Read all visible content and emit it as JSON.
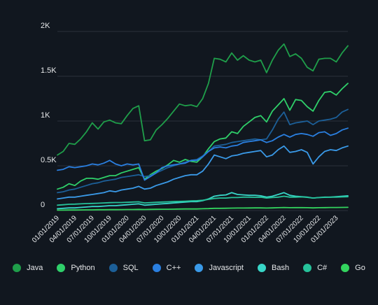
{
  "chart_data": {
    "type": "line",
    "title": "",
    "xlabel": "",
    "ylabel": "",
    "ylim": [
      0,
      2000
    ],
    "y_ticks": [
      0,
      500,
      1000,
      1500,
      2000
    ],
    "y_tick_labels": [
      "0",
      "0.5K",
      "1K",
      "1.5K",
      "2K"
    ],
    "x_tick_labels": [
      "01/01/2019",
      "04/01/2019",
      "07/01/2019",
      "10/01/2019",
      "01/01/2020",
      "04/01/2020",
      "07/01/2020",
      "10/01/2020",
      "01/01/2021",
      "04/01/2021",
      "07/01/2021",
      "10/01/2021",
      "01/01/2022",
      "04/01/2022",
      "07/01/2022",
      "10/01/2022",
      "01/01/2023"
    ],
    "x": [
      "01/2019",
      "02/2019",
      "03/2019",
      "04/2019",
      "05/2019",
      "06/2019",
      "07/2019",
      "08/2019",
      "09/2019",
      "10/2019",
      "11/2019",
      "12/2019",
      "01/2020",
      "02/2020",
      "03/2020",
      "04/2020",
      "05/2020",
      "06/2020",
      "07/2020",
      "08/2020",
      "09/2020",
      "10/2020",
      "11/2020",
      "12/2020",
      "01/2021",
      "02/2021",
      "03/2021",
      "04/2021",
      "05/2021",
      "06/2021",
      "07/2021",
      "08/2021",
      "09/2021",
      "10/2021",
      "11/2021",
      "12/2021",
      "01/2022",
      "02/2022",
      "03/2022",
      "04/2022",
      "05/2022",
      "06/2022",
      "07/2022",
      "08/2022",
      "09/2022",
      "10/2022",
      "11/2022",
      "12/2022",
      "01/2023",
      "02/2023",
      "03/2023"
    ],
    "grid": "horizontal",
    "legend_position": "bottom",
    "series": [
      {
        "name": "Java",
        "color": "#1f9e4a",
        "values": [
          620,
          660,
          750,
          740,
          800,
          880,
          980,
          910,
          990,
          1010,
          980,
          970,
          1060,
          1140,
          1170,
          780,
          790,
          900,
          960,
          1030,
          1110,
          1190,
          1170,
          1180,
          1160,
          1250,
          1420,
          1700,
          1690,
          1660,
          1760,
          1680,
          1730,
          1680,
          1660,
          1680,
          1540,
          1680,
          1790,
          1860,
          1720,
          1750,
          1700,
          1600,
          1560,
          1690,
          1700,
          1700,
          1660,
          1760,
          1840
        ]
      },
      {
        "name": "Python",
        "color": "#2fd06a",
        "values": [
          240,
          260,
          300,
          280,
          330,
          360,
          360,
          350,
          370,
          390,
          390,
          420,
          440,
          460,
          480,
          350,
          400,
          440,
          470,
          510,
          560,
          540,
          570,
          550,
          540,
          600,
          690,
          770,
          800,
          810,
          880,
          860,
          940,
          990,
          1040,
          1060,
          990,
          1110,
          1180,
          1250,
          1120,
          1240,
          1230,
          1160,
          1110,
          1230,
          1320,
          1330,
          1290,
          1360,
          1420
        ]
      },
      {
        "name": "SQL",
        "color": "#1c5f98",
        "values": [
          200,
          210,
          230,
          240,
          260,
          280,
          300,
          310,
          330,
          340,
          350,
          370,
          380,
          390,
          400,
          380,
          390,
          420,
          450,
          480,
          500,
          520,
          540,
          560,
          570,
          610,
          660,
          720,
          730,
          740,
          760,
          770,
          780,
          790,
          800,
          790,
          800,
          900,
          1020,
          1100,
          960,
          980,
          990,
          1000,
          960,
          1000,
          1010,
          1020,
          1040,
          1100,
          1130
        ]
      },
      {
        "name": "C++",
        "color": "#2a7fe0",
        "values": [
          450,
          460,
          490,
          480,
          490,
          500,
          520,
          510,
          530,
          560,
          520,
          500,
          520,
          510,
          520,
          340,
          380,
          420,
          480,
          500,
          510,
          520,
          530,
          560,
          560,
          600,
          660,
          700,
          710,
          700,
          720,
          730,
          760,
          770,
          780,
          790,
          760,
          780,
          820,
          850,
          820,
          850,
          860,
          850,
          830,
          870,
          880,
          840,
          860,
          900,
          920
        ]
      },
      {
        "name": "Javascript",
        "color": "#3a9ae8",
        "values": [
          130,
          140,
          150,
          150,
          160,
          170,
          180,
          190,
          200,
          220,
          210,
          230,
          240,
          250,
          270,
          240,
          250,
          280,
          300,
          320,
          350,
          370,
          390,
          400,
          400,
          440,
          520,
          620,
          600,
          580,
          610,
          620,
          640,
          650,
          660,
          670,
          600,
          620,
          680,
          720,
          650,
          660,
          680,
          650,
          520,
          600,
          660,
          680,
          670,
          700,
          720
        ]
      },
      {
        "name": "Bash",
        "color": "#38d6c8",
        "values": [
          20,
          25,
          30,
          30,
          35,
          40,
          45,
          45,
          50,
          55,
          55,
          60,
          65,
          70,
          75,
          60,
          65,
          70,
          75,
          80,
          85,
          90,
          95,
          100,
          100,
          110,
          130,
          160,
          170,
          175,
          200,
          180,
          175,
          170,
          170,
          165,
          150,
          160,
          180,
          200,
          170,
          160,
          155,
          150,
          140,
          145,
          150,
          150,
          155,
          160,
          165
        ]
      },
      {
        "name": "C#",
        "color": "#26c29a",
        "values": [
          60,
          65,
          70,
          72,
          75,
          78,
          80,
          82,
          85,
          88,
          90,
          90,
          92,
          95,
          98,
          85,
          88,
          92,
          95,
          98,
          100,
          102,
          105,
          108,
          110,
          115,
          125,
          135,
          140,
          140,
          145,
          145,
          150,
          150,
          148,
          150,
          140,
          145,
          150,
          160,
          150,
          150,
          152,
          148,
          140,
          145,
          148,
          150,
          150,
          152,
          155
        ]
      },
      {
        "name": "Go",
        "color": "#33d45e",
        "values": [
          5,
          5,
          6,
          6,
          7,
          8,
          8,
          9,
          9,
          10,
          10,
          11,
          12,
          12,
          13,
          12,
          13,
          14,
          15,
          15,
          16,
          17,
          18,
          18,
          18,
          20,
          22,
          25,
          25,
          26,
          27,
          28,
          28,
          29,
          30,
          30,
          28,
          30,
          32,
          34,
          32,
          33,
          33,
          32,
          30,
          32,
          33,
          34,
          34,
          35,
          36
        ]
      }
    ]
  }
}
